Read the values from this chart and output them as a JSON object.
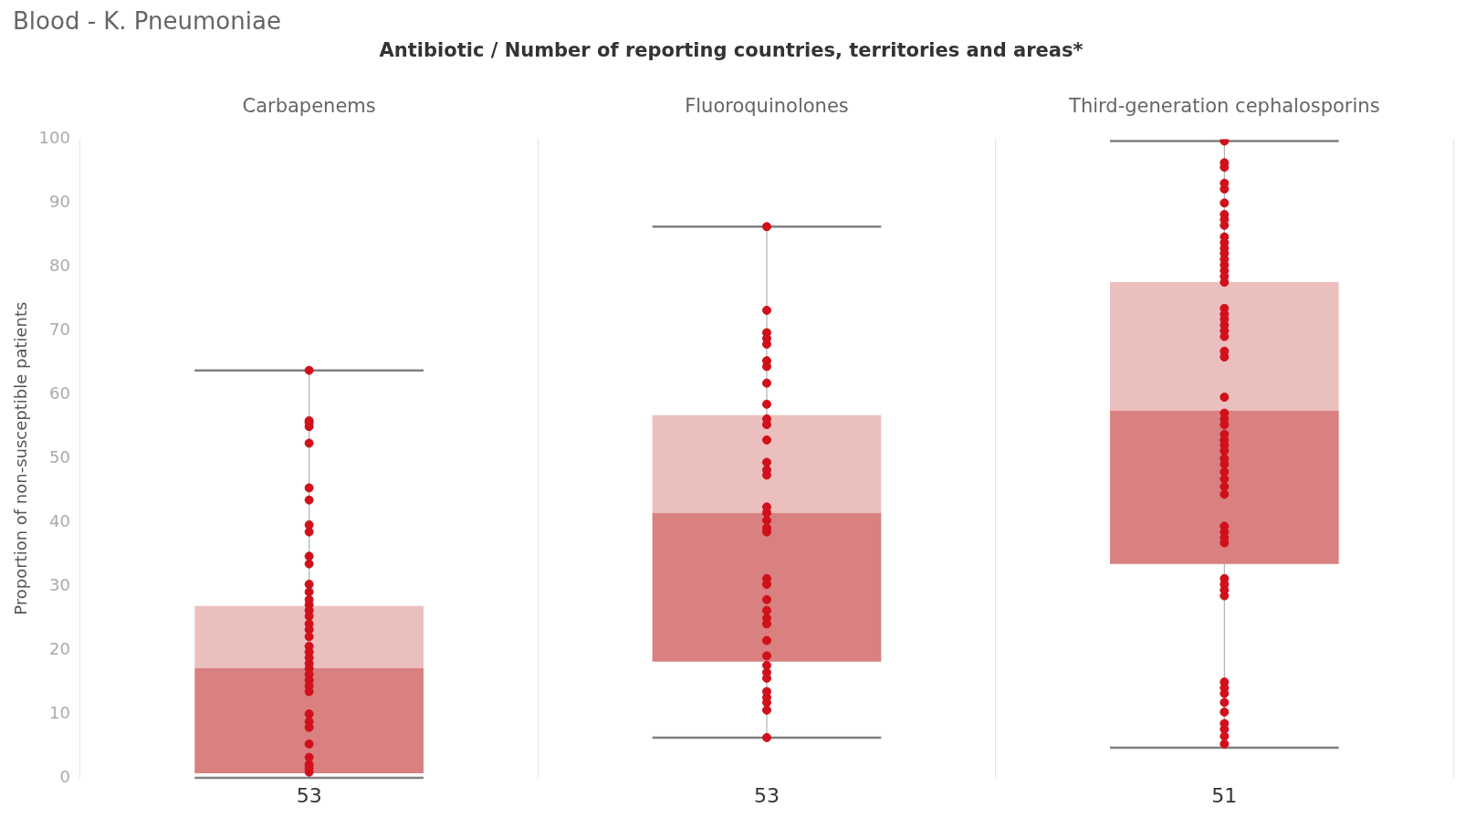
{
  "chart_data": {
    "type": "box",
    "title": "Blood - K. Pneumoniae",
    "subtitle": "Antibiotic / Number of reporting countries, territories and areas*",
    "ylabel": "Proportion of non-susceptible patients",
    "categories": [
      "Carbapenems",
      "Fluoroquinolones",
      "Third-generation cephalosporins"
    ],
    "ylim": [
      0,
      100
    ],
    "yticks": [
      0,
      10,
      20,
      30,
      40,
      50,
      60,
      70,
      80,
      90,
      100
    ],
    "grid": "x",
    "legend": false,
    "series": [
      {
        "type": "box",
        "color": "#d98080",
        "boxes": [
          {
            "low": 0,
            "q1": 0.7,
            "median": 17.2,
            "q3": 26.9,
            "high": 63.8
          },
          {
            "low": 6.3,
            "q1": 18.2,
            "median": 41.5,
            "q3": 56.8,
            "high": 86.3
          },
          {
            "low": 4.7,
            "q1": 33.5,
            "median": 57.5,
            "q3": 77.6,
            "high": 99.7
          }
        ]
      },
      {
        "type": "scatter",
        "color": "#d0101b",
        "marker": "circle",
        "x": [
          "Carbapenems",
          "Carbapenems",
          "Carbapenems",
          "Carbapenems",
          "Carbapenems",
          "Carbapenems",
          "Carbapenems",
          "Carbapenems",
          "Carbapenems",
          "Carbapenems",
          "Carbapenems",
          "Carbapenems",
          "Carbapenems",
          "Carbapenems",
          "Carbapenems",
          "Carbapenems",
          "Carbapenems",
          "Carbapenems",
          "Carbapenems",
          "Carbapenems",
          "Carbapenems",
          "Carbapenems",
          "Carbapenems",
          "Carbapenems",
          "Carbapenems",
          "Carbapenems",
          "Carbapenems",
          "Carbapenems",
          "Carbapenems",
          "Carbapenems",
          "Carbapenems",
          "Carbapenems",
          "Carbapenems",
          "Carbapenems",
          "Carbapenems",
          "Carbapenems",
          "Carbapenems"
        ],
        "values": [
          63.8,
          55.9,
          55.6,
          55,
          52.4,
          45.4,
          43.5,
          39.6,
          38.5,
          34.7,
          33.5,
          30.3,
          29.1,
          27.9,
          27.1,
          26.2,
          25.3,
          24.1,
          23.2,
          22.1,
          20.6,
          19.7,
          18.8,
          17.9,
          17.1,
          16.2,
          15.3,
          14.4,
          13.5,
          10,
          8.8,
          7.9,
          5.3,
          3.2,
          2.1,
          1.5,
          0.9
        ]
      },
      {
        "type": "scatter",
        "color": "#d0101b",
        "marker": "circle",
        "x": [
          "Fluoroquinolones",
          "Fluoroquinolones",
          "Fluoroquinolones",
          "Fluoroquinolones",
          "Fluoroquinolones",
          "Fluoroquinolones",
          "Fluoroquinolones",
          "Fluoroquinolones",
          "Fluoroquinolones",
          "Fluoroquinolones",
          "Fluoroquinolones",
          "Fluoroquinolones",
          "Fluoroquinolones",
          "Fluoroquinolones",
          "Fluoroquinolones",
          "Fluoroquinolones",
          "Fluoroquinolones",
          "Fluoroquinolones",
          "Fluoroquinolones",
          "Fluoroquinolones",
          "Fluoroquinolones",
          "Fluoroquinolones",
          "Fluoroquinolones",
          "Fluoroquinolones",
          "Fluoroquinolones",
          "Fluoroquinolones",
          "Fluoroquinolones",
          "Fluoroquinolones",
          "Fluoroquinolones",
          "Fluoroquinolones",
          "Fluoroquinolones",
          "Fluoroquinolones",
          "Fluoroquinolones",
          "Fluoroquinolones",
          "Fluoroquinolones",
          "Fluoroquinolones"
        ],
        "values": [
          86.3,
          73.2,
          69.7,
          68.8,
          67.9,
          65.3,
          64.4,
          61.8,
          58.5,
          56.2,
          55.3,
          52.9,
          49.4,
          48.2,
          47.4,
          42.4,
          41.5,
          40.3,
          39.1,
          38.5,
          31.2,
          30.3,
          27.9,
          26.2,
          25,
          24.1,
          21.5,
          19.1,
          17.6,
          16.5,
          15.6,
          13.5,
          12.6,
          11.8,
          10.6,
          6.3
        ]
      },
      {
        "type": "scatter",
        "color": "#d0101b",
        "marker": "circle",
        "x": [
          "Third-generation cephalosporins",
          "Third-generation cephalosporins",
          "Third-generation cephalosporins",
          "Third-generation cephalosporins",
          "Third-generation cephalosporins",
          "Third-generation cephalosporins",
          "Third-generation cephalosporins",
          "Third-generation cephalosporins",
          "Third-generation cephalosporins",
          "Third-generation cephalosporins",
          "Third-generation cephalosporins",
          "Third-generation cephalosporins",
          "Third-generation cephalosporins",
          "Third-generation cephalosporins",
          "Third-generation cephalosporins",
          "Third-generation cephalosporins",
          "Third-generation cephalosporins",
          "Third-generation cephalosporins",
          "Third-generation cephalosporins",
          "Third-generation cephalosporins",
          "Third-generation cephalosporins",
          "Third-generation cephalosporins",
          "Third-generation cephalosporins",
          "Third-generation cephalosporins",
          "Third-generation cephalosporins",
          "Third-generation cephalosporins",
          "Third-generation cephalosporins",
          "Third-generation cephalosporins",
          "Third-generation cephalosporins",
          "Third-generation cephalosporins",
          "Third-generation cephalosporins",
          "Third-generation cephalosporins",
          "Third-generation cephalosporins",
          "Third-generation cephalosporins",
          "Third-generation cephalosporins",
          "Third-generation cephalosporins",
          "Third-generation cephalosporins",
          "Third-generation cephalosporins",
          "Third-generation cephalosporins",
          "Third-generation cephalosporins",
          "Third-generation cephalosporins",
          "Third-generation cephalosporins",
          "Third-generation cephalosporins",
          "Third-generation cephalosporins",
          "Third-generation cephalosporins",
          "Third-generation cephalosporins",
          "Third-generation cephalosporins",
          "Third-generation cephalosporins",
          "Third-generation cephalosporins",
          "Third-generation cephalosporins",
          "Third-generation cephalosporins",
          "Third-generation cephalosporins",
          "Third-generation cephalosporins",
          "Third-generation cephalosporins",
          "Third-generation cephalosporins",
          "Third-generation cephalosporins",
          "Third-generation cephalosporins"
        ],
        "values": [
          99.7,
          96.3,
          95.6,
          93.1,
          92.2,
          90,
          88.2,
          87.4,
          86.5,
          84.7,
          83.8,
          82.9,
          82.1,
          81.2,
          80.3,
          79.4,
          78.5,
          77.6,
          73.5,
          72.6,
          71.8,
          70.9,
          70,
          69.1,
          66.8,
          65.9,
          59.6,
          57.1,
          56.2,
          55.3,
          53.8,
          52.9,
          52.1,
          51.2,
          50,
          49.1,
          47.9,
          46.8,
          45.6,
          44.4,
          39.4,
          38.5,
          37.6,
          36.8,
          31.2,
          30.3,
          29.4,
          28.5,
          15,
          14.1,
          13.2,
          11.8,
          10.3,
          8.5,
          7.6,
          6.5,
          5.3
        ]
      }
    ],
    "annotations": [
      "53",
      "53",
      "51"
    ]
  }
}
